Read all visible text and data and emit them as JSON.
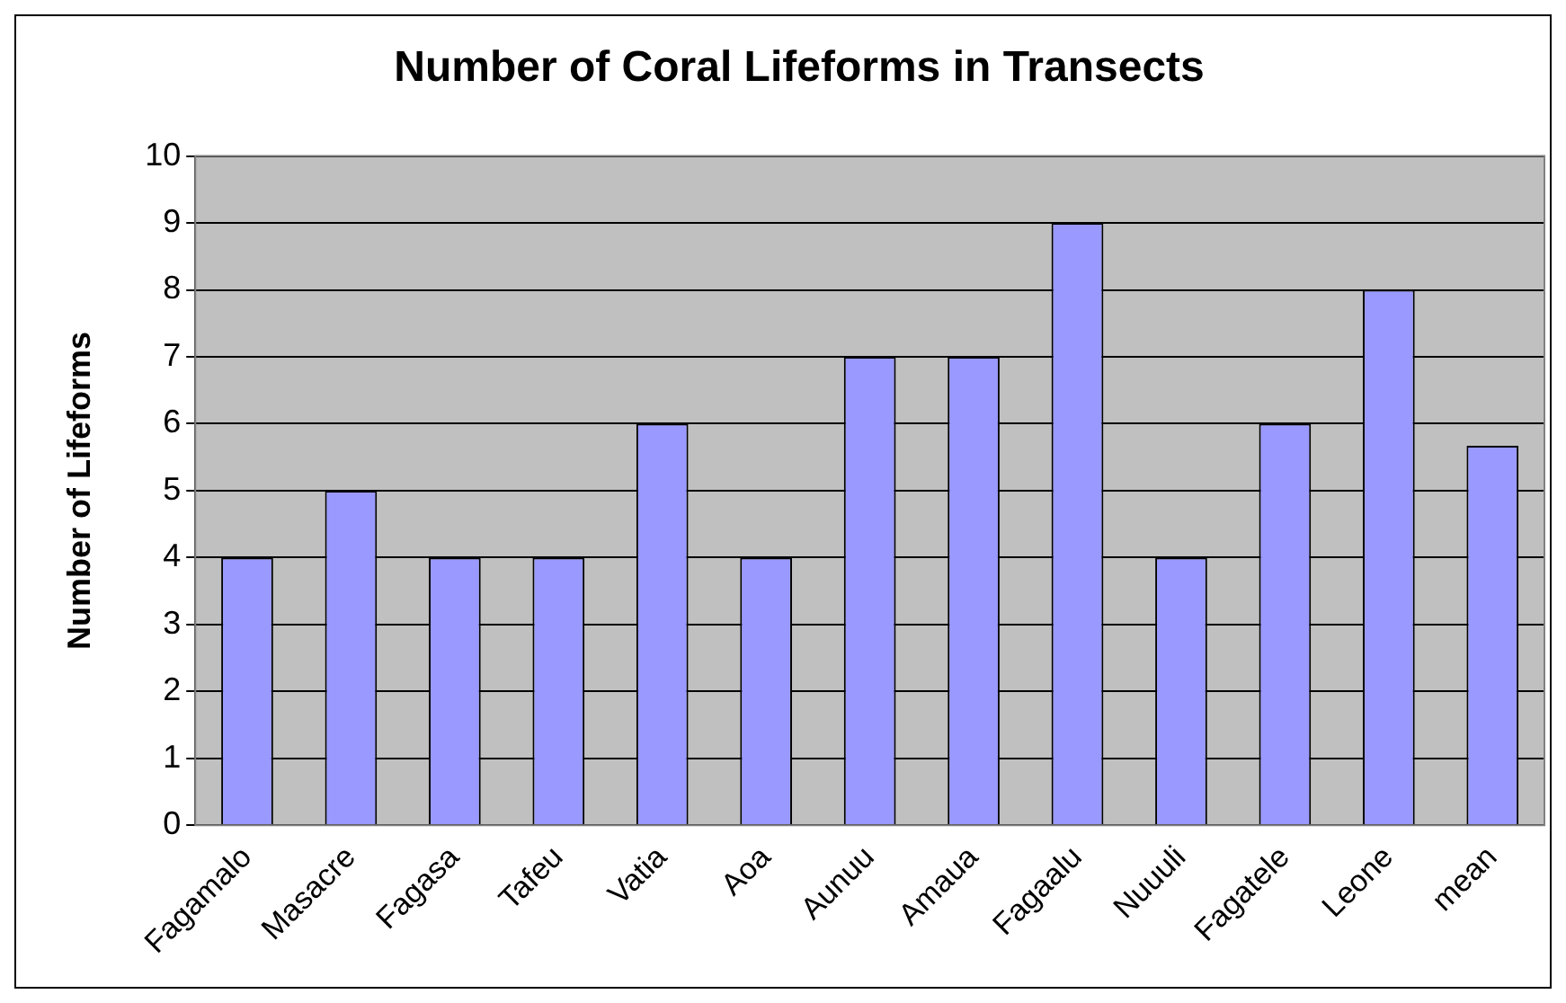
{
  "chart_data": {
    "type": "bar",
    "title": "Number of Coral Lifeforms in Transects",
    "ylabel": "Number of Lifeforms",
    "categories": [
      "Fagamalo",
      "Masacre",
      "Fagasa",
      "Tafeu",
      "Vatia",
      "Aoa",
      "Aunuu",
      "Amaua",
      "Fagaalu",
      "Nuuuli",
      "Fagatele",
      "Leone",
      "mean"
    ],
    "values": [
      4,
      5,
      4,
      4,
      6,
      4,
      7,
      7,
      9,
      4,
      6,
      8,
      5.67
    ],
    "color": "#9999ff",
    "ylim": [
      0,
      10
    ],
    "yticks": [
      0,
      1,
      2,
      3,
      4,
      5,
      6,
      7,
      8,
      9,
      10
    ],
    "grid": "y",
    "legend": false
  }
}
